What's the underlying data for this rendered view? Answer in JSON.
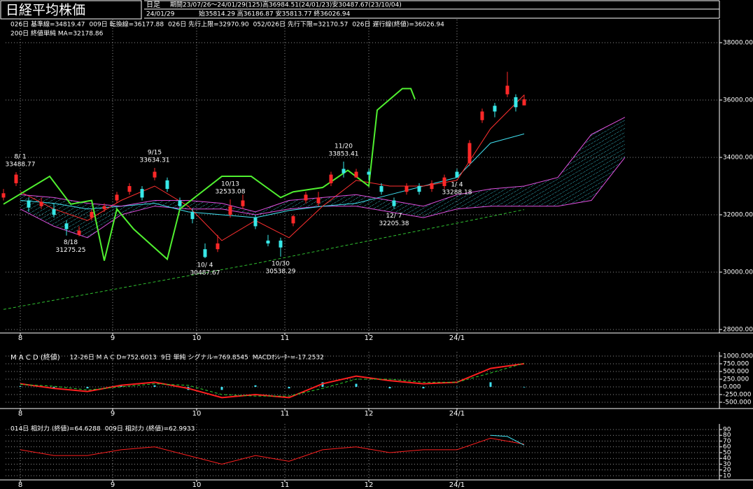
{
  "chart_data": [
    {
      "type": "candlestick",
      "title": "日経平均株価",
      "period_type": "日足",
      "period": "期間23/07/26～24/01/29(125)高36984.51(24/01/23)安30487.67(23/10/04)",
      "date": "24/01/29",
      "ohlc_text": "始35814.29 高36186.87 安35813.77 終36026.94",
      "up_color": "#ff2828",
      "down_color": "#38e8e8",
      "grid": true,
      "xlim": [
        0.5,
        170.5
      ],
      "xticks": [
        {
          "value": 4,
          "label": "8"
        },
        {
          "value": 26,
          "label": "9"
        },
        {
          "value": 46,
          "label": "10"
        },
        {
          "value": 67,
          "label": "11"
        },
        {
          "value": 87,
          "label": "12"
        },
        {
          "value": 108,
          "label": "24/1"
        }
      ],
      "ylim": [
        27878,
        38805
      ],
      "yticks": [
        {
          "value": 38000,
          "label": "38000.00"
        },
        {
          "value": 36000,
          "label": "36000.00"
        },
        {
          "value": 34000,
          "label": "34000.00"
        },
        {
          "value": 32000,
          "label": "32000.00"
        },
        {
          "value": 30000,
          "label": "30000.00"
        },
        {
          "value": 28000,
          "label": "28000.00"
        }
      ],
      "x": [
        0,
        3,
        6,
        9,
        12,
        15,
        18,
        21,
        24,
        27,
        30,
        33,
        36,
        39,
        42,
        45,
        48,
        51,
        54,
        57,
        60,
        63,
        66,
        69,
        72,
        75,
        78,
        81,
        84,
        87,
        90,
        93,
        96,
        99,
        102,
        105,
        108,
        111,
        114,
        117,
        120,
        122,
        124
      ],
      "open": [
        32600,
        33100,
        32500,
        32300,
        32200,
        31700,
        31300,
        31900,
        32200,
        32500,
        32800,
        32900,
        33300,
        33200,
        32500,
        32100,
        30800,
        30800,
        32000,
        32300,
        31900,
        31100,
        31100,
        31700,
        32500,
        32400,
        33100,
        33600,
        33300,
        33500,
        33000,
        32500,
        32800,
        33000,
        32900,
        33000,
        33500,
        33800,
        35300,
        35800,
        36200,
        36100,
        35814.29
      ],
      "high": [
        32900,
        33488.77,
        32600,
        32600,
        32400,
        31800,
        31600,
        32200,
        32400,
        32800,
        33100,
        33000,
        33634.31,
        33300,
        32600,
        32200,
        31000,
        31300,
        32533.08,
        32700,
        32000,
        31300,
        31200,
        32000,
        32800,
        32800,
        33500,
        33853.41,
        33600,
        33600,
        33100,
        32600,
        33100,
        33100,
        33200,
        33400,
        33600,
        34600,
        35700,
        35900,
        36984.51,
        36200,
        36186.87
      ],
      "low": [
        32500,
        33000,
        32100,
        32200,
        31900,
        31275.25,
        31250,
        31800,
        32100,
        32400,
        32700,
        32500,
        33200,
        32800,
        32200,
        31700,
        30487.67,
        30700,
        31900,
        32200,
        31500,
        30900,
        30538.29,
        31600,
        32400,
        32300,
        33000,
        33300,
        33300,
        33200,
        32700,
        32205.38,
        32700,
        32700,
        32800,
        32900,
        33288.18,
        33700,
        35200,
        35400,
        36100,
        35600,
        35813.77
      ],
      "close": [
        32750,
        33400,
        32250,
        32450,
        32000,
        31500,
        31450,
        32100,
        32300,
        32700,
        33000,
        32600,
        33500,
        32900,
        32300,
        31850,
        30526,
        31000,
        32300,
        32500,
        31600,
        31000,
        30860,
        31950,
        32700,
        32600,
        33400,
        33450,
        33500,
        33400,
        32800,
        32300,
        33000,
        32800,
        33100,
        33300,
        33300,
        34500,
        35600,
        35600,
        36500,
        35750,
        36026.94
      ],
      "series": [
        {
          "name": "026日 基準線=34819.47",
          "color": "#40e0f0",
          "style": "line",
          "x": [
            4,
            12,
            20,
            28,
            36,
            44,
            52,
            60,
            68,
            76,
            84,
            92,
            100,
            108,
            116,
            124
          ],
          "values": [
            32500,
            32400,
            32200,
            32300,
            32400,
            32100,
            32000,
            31900,
            32150,
            32300,
            32400,
            32700,
            33000,
            33300,
            34500,
            34819.47
          ]
        },
        {
          "name": "009日 転換線=36177.88",
          "color": "#ff3030",
          "style": "line",
          "x": [
            4,
            12,
            20,
            28,
            36,
            44,
            52,
            60,
            68,
            76,
            84,
            92,
            100,
            108,
            116,
            124
          ],
          "values": [
            32800,
            32200,
            31800,
            32500,
            33000,
            32300,
            31100,
            31800,
            31200,
            32300,
            33200,
            33000,
            33000,
            33200,
            35000,
            36177.88
          ]
        },
        {
          "name": "026日 先行上限=32970.90",
          "color": "#e050e0",
          "style": "line",
          "x": [
            4,
            12,
            20,
            28,
            36,
            44,
            52,
            60,
            68,
            76,
            84,
            92,
            100,
            108,
            116,
            124,
            132,
            140,
            148
          ],
          "values": [
            32700,
            32600,
            32400,
            32300,
            32500,
            32500,
            32400,
            32100,
            32500,
            32600,
            32700,
            32500,
            32300,
            32700,
            32900,
            33000,
            33300,
            34800,
            35400
          ]
        },
        {
          "name": "052/026日 先行下限=32170.57",
          "color": "#e050e0",
          "style": "line",
          "fill_to_previous": true,
          "fill_color": "#40e0f0",
          "x": [
            4,
            12,
            20,
            28,
            36,
            44,
            52,
            60,
            68,
            76,
            84,
            92,
            100,
            108,
            116,
            124,
            132,
            140,
            148
          ],
          "values": [
            32200,
            31600,
            31200,
            32000,
            32300,
            32200,
            32200,
            32000,
            32200,
            32300,
            32300,
            32100,
            31900,
            32200,
            32300,
            32300,
            32300,
            32500,
            34000
          ]
        },
        {
          "name": "026日 遅行線(終値)=36026.94",
          "color": "#50f030",
          "style": "thick",
          "x": [
            0,
            11,
            16,
            21,
            24,
            27,
            31,
            39,
            42,
            52,
            59,
            66,
            69,
            76,
            82,
            87,
            89,
            95,
            97,
            98
          ],
          "values": [
            32370,
            33340,
            32370,
            32500,
            30400,
            32200,
            31500,
            30450,
            32200,
            33340,
            33340,
            32600,
            32800,
            32950,
            33550,
            33000,
            35650,
            36400,
            36400,
            36026.94
          ]
        },
        {
          "name": "200日 終値単純 MA=32178.86",
          "color": "#30c030",
          "style": "dash",
          "x": [
            0,
            60,
            124
          ],
          "values": [
            28700,
            30300,
            32178.86
          ]
        }
      ],
      "annotations": [
        {
          "label": "8/ 1",
          "value": 33488.77,
          "x": 4,
          "position": "above",
          "color": "#ff3030"
        },
        {
          "label": "8/18",
          "value": 31275.25,
          "x": 16,
          "position": "below",
          "color": "#40e0f0"
        },
        {
          "label": "9/15",
          "value": 33634.31,
          "x": 36,
          "position": "above",
          "color": "#ff3030"
        },
        {
          "label": "10/ 4",
          "value": 30487.67,
          "x": 48,
          "position": "below",
          "color": "#40e0f0"
        },
        {
          "label": "10/13",
          "value": 32533.08,
          "x": 54,
          "position": "above",
          "color": "#ff3030"
        },
        {
          "label": "10/30",
          "value": 30538.29,
          "x": 66,
          "position": "below",
          "color": "#40e0f0"
        },
        {
          "label": "11/20",
          "value": 33853.41,
          "x": 81,
          "position": "above",
          "color": "#ff3030"
        },
        {
          "label": "12/ 7",
          "value": 32205.38,
          "x": 93,
          "position": "below",
          "color": "#40e0f0"
        },
        {
          "label": "1/ 4",
          "value": 33288.18,
          "x": 108,
          "position": "below",
          "color": "#40e0f0"
        }
      ]
    },
    {
      "type": "line",
      "title": "M A C D (終値)",
      "title_color": "#ffffff",
      "grid": true,
      "xlim": [
        0.5,
        170.5
      ],
      "xticks": [
        {
          "value": 4,
          "label": "8"
        },
        {
          "value": 26,
          "label": "9"
        },
        {
          "value": 46,
          "label": "10"
        },
        {
          "value": 67,
          "label": "11"
        },
        {
          "value": 87,
          "label": "12"
        },
        {
          "value": 108,
          "label": "24/1"
        }
      ],
      "ylim": [
        -705,
        1136
      ],
      "yticks": [
        {
          "value": 1000,
          "label": "1000.000"
        },
        {
          "value": 750,
          "label": "750.000"
        },
        {
          "value": 500,
          "label": "500.000"
        },
        {
          "value": 250,
          "label": "250.000"
        },
        {
          "value": 0,
          "label": "0.000"
        },
        {
          "value": -250,
          "label": "-250.000"
        },
        {
          "value": -500,
          "label": "-500.000"
        }
      ],
      "series": [
        {
          "name": "12-26日 M A C D=752.6013",
          "color": "#ff2020",
          "style": "thick",
          "x": [
            4,
            12,
            20,
            28,
            36,
            44,
            52,
            60,
            68,
            76,
            84,
            92,
            100,
            108,
            116,
            124
          ],
          "values": [
            100,
            -50,
            -150,
            50,
            150,
            -50,
            -350,
            -250,
            -350,
            100,
            350,
            200,
            100,
            150,
            600,
            752.6013
          ]
        },
        {
          "name": "9日 単純 シグナル=769.8545",
          "color": "#30d030",
          "style": "dash",
          "x": [
            4,
            12,
            20,
            28,
            36,
            44,
            52,
            60,
            68,
            76,
            84,
            92,
            100,
            108,
            116,
            124
          ],
          "values": [
            80,
            20,
            -100,
            0,
            100,
            50,
            -250,
            -300,
            -300,
            -50,
            250,
            250,
            150,
            150,
            450,
            769.8545
          ]
        },
        {
          "name": "MACDｵｼﾚｰﾀｰ=-17.2532",
          "color": "#40e0f0",
          "style": "bar",
          "x": [
            4,
            12,
            20,
            28,
            36,
            44,
            52,
            60,
            68,
            76,
            84,
            92,
            100,
            108,
            116,
            124
          ],
          "values": [
            20,
            -70,
            -50,
            50,
            50,
            -100,
            -100,
            50,
            -50,
            150,
            100,
            -50,
            -50,
            0,
            150,
            -17.2532
          ]
        }
      ]
    },
    {
      "type": "line",
      "grid": true,
      "xlim": [
        0.5,
        170.5
      ],
      "xticks": [
        {
          "value": 4,
          "label": "8"
        },
        {
          "value": 26,
          "label": "9"
        },
        {
          "value": 46,
          "label": "10"
        },
        {
          "value": 67,
          "label": "11"
        },
        {
          "value": 87,
          "label": "12"
        },
        {
          "value": 108,
          "label": "24/1"
        }
      ],
      "ylim": [
        2.7,
        99.7
      ],
      "yticks": [
        90,
        80,
        70,
        60,
        50,
        40,
        30,
        20,
        10
      ],
      "series": [
        {
          "name": "014日 相対力 (終値)=64.6288",
          "color": "#ff2020",
          "style": "line",
          "x": [
            4,
            12,
            20,
            28,
            36,
            44,
            52,
            60,
            68,
            76,
            84,
            92,
            100,
            108,
            116,
            124
          ],
          "values": [
            55,
            45,
            45,
            55,
            60,
            45,
            30,
            45,
            35,
            55,
            60,
            50,
            55,
            55,
            75,
            64.6288
          ]
        },
        {
          "name": "009日 相対力 (終値)=62.9933",
          "color": "#40e0f0",
          "style": "line",
          "x": [
            116,
            120,
            124
          ],
          "values": [
            80,
            78,
            62.9933
          ]
        }
      ]
    }
  ]
}
